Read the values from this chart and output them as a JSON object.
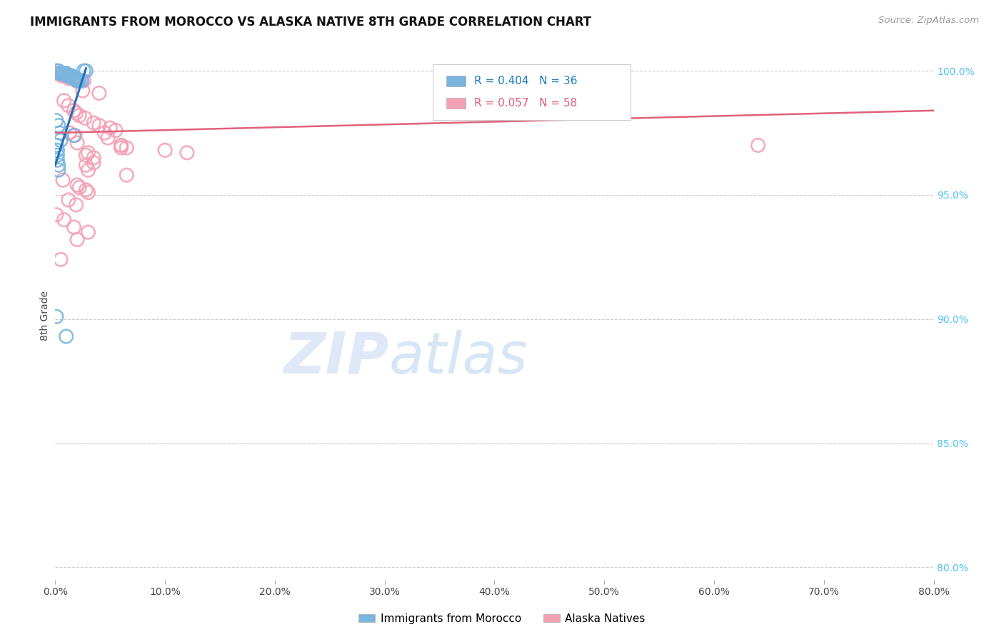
{
  "title": "IMMIGRANTS FROM MOROCCO VS ALASKA NATIVE 8TH GRADE CORRELATION CHART",
  "source": "Source: ZipAtlas.com",
  "ylabel": "8th Grade",
  "ylabel_right_ticks": [
    "100.0%",
    "95.0%",
    "90.0%",
    "85.0%",
    "80.0%"
  ],
  "ylabel_right_vals": [
    1.0,
    0.95,
    0.9,
    0.85,
    0.8
  ],
  "x_ticks": [
    0.0,
    0.1,
    0.2,
    0.3,
    0.4,
    0.5,
    0.6,
    0.7,
    0.8
  ],
  "x_tick_labels": [
    "0.0%",
    "10.0%",
    "20.0%",
    "30.0%",
    "40.0%",
    "50.0%",
    "60.0%",
    "70.0%",
    "80.0%"
  ],
  "x_min": 0.0,
  "x_max": 0.8,
  "y_min": 0.795,
  "y_max": 1.008,
  "blue_color": "#7ab5e0",
  "pink_color": "#f4a0b5",
  "blue_line_color": "#2171b5",
  "pink_line_color": "#e0607a",
  "blue_trendline_x": [
    0.0,
    0.028
  ],
  "blue_trendline_y": [
    0.962,
    1.001
  ],
  "pink_trendline_x": [
    0.0,
    0.8
  ],
  "pink_trendline_y": [
    0.975,
    0.984
  ],
  "blue_dots": [
    [
      0.001,
      1.0
    ],
    [
      0.003,
      1.0
    ],
    [
      0.004,
      0.999
    ],
    [
      0.006,
      0.999
    ],
    [
      0.007,
      0.999
    ],
    [
      0.008,
      0.999
    ],
    [
      0.009,
      0.999
    ],
    [
      0.01,
      0.999
    ],
    [
      0.011,
      0.998
    ],
    [
      0.012,
      0.998
    ],
    [
      0.013,
      0.998
    ],
    [
      0.014,
      0.998
    ],
    [
      0.015,
      0.998
    ],
    [
      0.016,
      0.997
    ],
    [
      0.017,
      0.997
    ],
    [
      0.018,
      0.997
    ],
    [
      0.019,
      0.997
    ],
    [
      0.02,
      0.996
    ],
    [
      0.021,
      0.996
    ],
    [
      0.022,
      0.996
    ],
    [
      0.024,
      0.996
    ],
    [
      0.026,
      1.0
    ],
    [
      0.028,
      1.0
    ],
    [
      0.001,
      0.98
    ],
    [
      0.003,
      0.978
    ],
    [
      0.004,
      0.975
    ],
    [
      0.005,
      0.972
    ],
    [
      0.001,
      0.97
    ],
    [
      0.002,
      0.968
    ],
    [
      0.002,
      0.966
    ],
    [
      0.002,
      0.964
    ],
    [
      0.003,
      0.962
    ],
    [
      0.003,
      0.96
    ],
    [
      0.001,
      0.901
    ],
    [
      0.01,
      0.893
    ],
    [
      0.017,
      0.974
    ]
  ],
  "pink_dots": [
    [
      0.001,
      0.999
    ],
    [
      0.004,
      0.999
    ],
    [
      0.006,
      0.998
    ],
    [
      0.008,
      0.998
    ],
    [
      0.01,
      0.998
    ],
    [
      0.012,
      0.997
    ],
    [
      0.015,
      0.997
    ],
    [
      0.017,
      0.997
    ],
    [
      0.019,
      0.996
    ],
    [
      0.021,
      0.996
    ],
    [
      0.024,
      0.996
    ],
    [
      0.026,
      0.996
    ],
    [
      0.003,
      0.999
    ],
    [
      0.007,
      0.998
    ],
    [
      0.025,
      0.992
    ],
    [
      0.04,
      0.991
    ],
    [
      0.008,
      0.988
    ],
    [
      0.012,
      0.986
    ],
    [
      0.017,
      0.984
    ],
    [
      0.019,
      0.983
    ],
    [
      0.022,
      0.982
    ],
    [
      0.027,
      0.981
    ],
    [
      0.035,
      0.979
    ],
    [
      0.04,
      0.978
    ],
    [
      0.05,
      0.977
    ],
    [
      0.055,
      0.976
    ],
    [
      0.013,
      0.975
    ],
    [
      0.018,
      0.974
    ],
    [
      0.048,
      0.973
    ],
    [
      0.02,
      0.971
    ],
    [
      0.06,
      0.97
    ],
    [
      0.065,
      0.969
    ],
    [
      0.03,
      0.967
    ],
    [
      0.028,
      0.966
    ],
    [
      0.035,
      0.965
    ],
    [
      0.035,
      0.963
    ],
    [
      0.028,
      0.962
    ],
    [
      0.03,
      0.96
    ],
    [
      0.065,
      0.958
    ],
    [
      0.007,
      0.956
    ],
    [
      0.02,
      0.954
    ],
    [
      0.022,
      0.953
    ],
    [
      0.028,
      0.952
    ],
    [
      0.03,
      0.951
    ],
    [
      0.012,
      0.948
    ],
    [
      0.019,
      0.946
    ],
    [
      0.06,
      0.97
    ],
    [
      0.001,
      0.942
    ],
    [
      0.008,
      0.94
    ],
    [
      0.017,
      0.937
    ],
    [
      0.03,
      0.935
    ],
    [
      0.02,
      0.932
    ],
    [
      0.005,
      0.924
    ],
    [
      0.045,
      0.975
    ],
    [
      0.64,
      0.97
    ],
    [
      0.06,
      0.969
    ],
    [
      0.1,
      0.968
    ],
    [
      0.12,
      0.967
    ]
  ]
}
